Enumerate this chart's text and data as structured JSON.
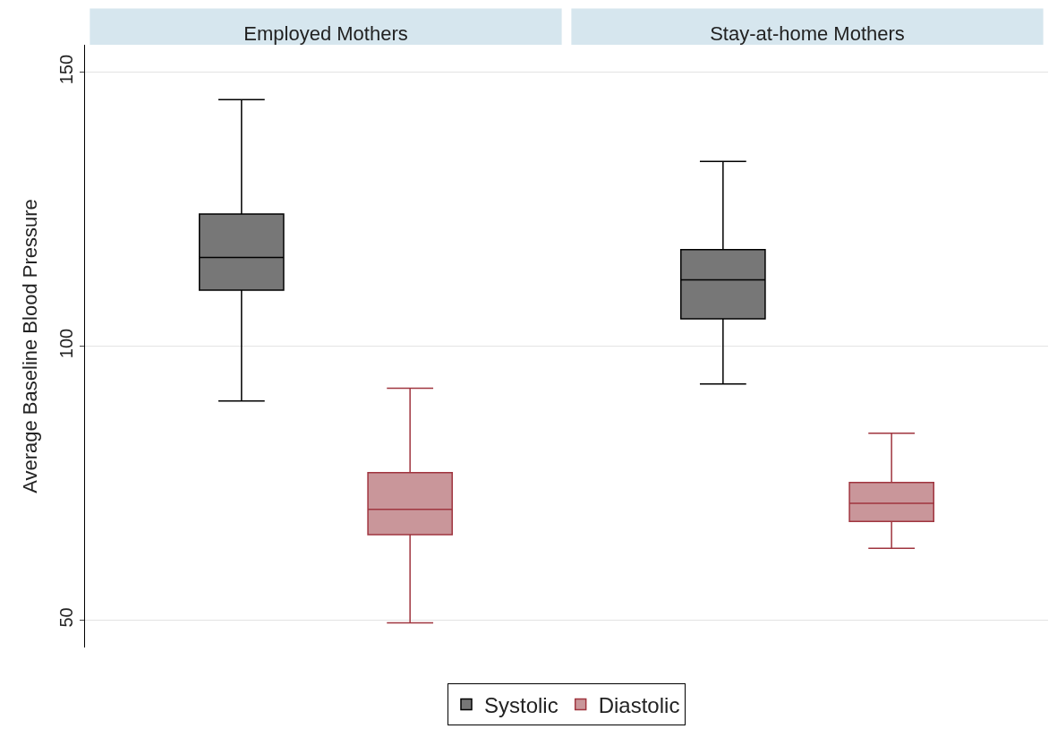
{
  "chart_data": {
    "type": "box",
    "ylabel": "Average Baseline Blood Pressure",
    "categories": [
      "Employed Mothers",
      "Stay-at-home Mothers"
    ],
    "ylim": [
      45,
      155
    ],
    "yticks": [
      50,
      100,
      150
    ],
    "grid": "y",
    "legend": "bottom",
    "series": [
      {
        "name": "Systolic",
        "color": "#777777",
        "boxes": [
          {
            "low": 90,
            "q1": 110.2,
            "median": 116.2,
            "q3": 124.1,
            "high": 145
          },
          {
            "low": 93.1,
            "q1": 105,
            "median": 112.1,
            "q3": 117.6,
            "high": 133.7
          }
        ]
      },
      {
        "name": "Diastolic",
        "color": "#c9969a",
        "boxes": [
          {
            "low": 49.5,
            "q1": 65.6,
            "median": 70.2,
            "q3": 76.9,
            "high": 92.3
          },
          {
            "low": 63.1,
            "q1": 68,
            "median": 71.3,
            "q3": 75.1,
            "high": 84.1
          }
        ]
      }
    ]
  }
}
